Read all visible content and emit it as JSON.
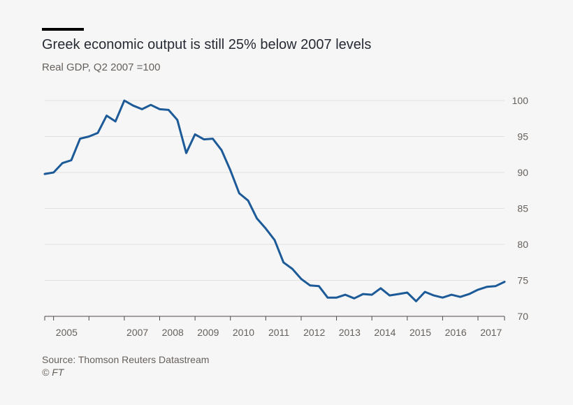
{
  "title": "Greek economic output is still 25% below 2007 levels",
  "subtitle": "Real GDP, Q2 2007 =100",
  "source": "Source: Thomson Reuters Datastream",
  "copyright": "© FT",
  "colors": {
    "background": "#f6f6f6",
    "line": "#1d5a98",
    "accent_bar": "#000000",
    "gridline": "#e3e0dd",
    "text": "#66605c",
    "title": "#262a33"
  },
  "chart_data": {
    "type": "line",
    "title": "Greek economic output is still 25% below 2007 levels",
    "subtitle": "Real GDP, Q2 2007 =100",
    "xlabel": "",
    "ylabel": "",
    "ylim": [
      70,
      100
    ],
    "yticks": [
      70,
      75,
      80,
      85,
      90,
      95,
      100
    ],
    "y_axis_side": "right",
    "grid": true,
    "legend": "none",
    "x_tick_labels": [
      "2005",
      "2007",
      "2008",
      "2009",
      "2010",
      "2011",
      "2012",
      "2013",
      "2014",
      "2015",
      "2016",
      "2017"
    ],
    "x_start": 2004.75,
    "x_end": 2017.75,
    "x": [
      2004.75,
      2005.0,
      2005.25,
      2005.5,
      2005.75,
      2006.0,
      2006.25,
      2006.5,
      2006.75,
      2007.0,
      2007.25,
      2007.5,
      2007.75,
      2008.0,
      2008.25,
      2008.5,
      2008.75,
      2009.0,
      2009.25,
      2009.5,
      2009.75,
      2010.0,
      2010.25,
      2010.5,
      2010.75,
      2011.0,
      2011.25,
      2011.5,
      2011.75,
      2012.0,
      2012.25,
      2012.5,
      2012.75,
      2013.0,
      2013.25,
      2013.5,
      2013.75,
      2014.0,
      2014.25,
      2014.5,
      2014.75,
      2015.0,
      2015.25,
      2015.5,
      2015.75,
      2016.0,
      2016.25,
      2016.5,
      2016.75,
      2017.0,
      2017.25,
      2017.5,
      2017.75
    ],
    "series": [
      {
        "values": [
          89.8,
          90.0,
          91.3,
          91.7,
          94.7,
          95.0,
          95.5,
          97.9,
          97.1,
          100.0,
          99.3,
          98.8,
          99.4,
          98.8,
          98.7,
          97.3,
          92.7,
          95.3,
          94.6,
          94.7,
          93.1,
          90.3,
          87.1,
          86.1,
          83.6,
          82.2,
          80.6,
          77.5,
          76.6,
          75.2,
          74.3,
          74.2,
          72.6,
          72.6,
          73.0,
          72.5,
          73.1,
          73.0,
          73.9,
          72.9,
          73.1,
          73.3,
          72.1,
          73.4,
          72.9,
          72.6,
          73.0,
          72.7,
          73.1,
          73.7,
          74.1,
          74.2,
          74.8
        ]
      }
    ]
  }
}
